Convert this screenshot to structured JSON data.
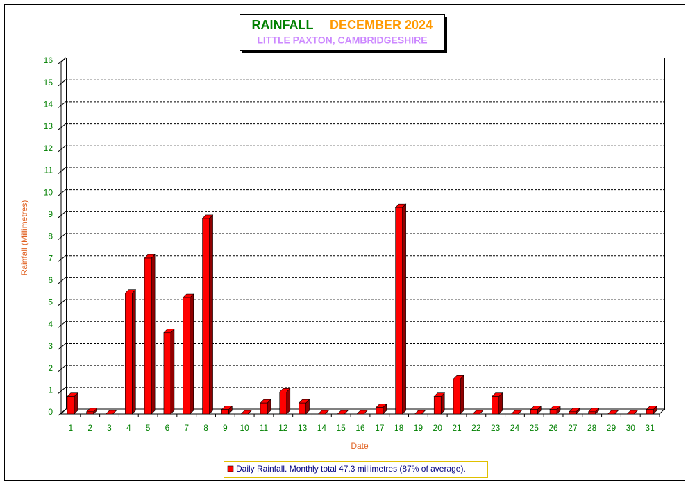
{
  "chart_data": {
    "type": "bar",
    "title": "RAINFALL",
    "period": "DECEMBER 2024",
    "subtitle": "LITTLE PAXTON, CAMBRIDGESHIRE",
    "x_label": "Date",
    "y_label": "Rainfall  (Millimetres)",
    "categories": [
      "1",
      "2",
      "3",
      "4",
      "5",
      "6",
      "7",
      "8",
      "9",
      "10",
      "11",
      "12",
      "13",
      "14",
      "15",
      "16",
      "17",
      "18",
      "19",
      "20",
      "21",
      "22",
      "23",
      "24",
      "25",
      "26",
      "27",
      "28",
      "29",
      "30",
      "31"
    ],
    "series": [
      {
        "name": "Daily Rainfall. Monthly total 47.3 millimetres (87% of average).",
        "color": "#ff0000",
        "values": [
          0.8,
          0.1,
          0,
          5.5,
          7.1,
          3.7,
          5.3,
          8.9,
          0.2,
          0,
          0.5,
          1.0,
          0.5,
          0,
          0,
          0,
          0.3,
          9.4,
          0,
          0.8,
          1.6,
          0,
          0.8,
          0,
          0.2,
          0.2,
          0.1,
          0.1,
          0,
          0,
          0.2
        ]
      }
    ],
    "ylim": [
      0,
      16
    ],
    "yticks": [
      0,
      1,
      2,
      3,
      4,
      5,
      6,
      7,
      8,
      9,
      10,
      11,
      12,
      13,
      14,
      15,
      16
    ],
    "grid": true
  }
}
